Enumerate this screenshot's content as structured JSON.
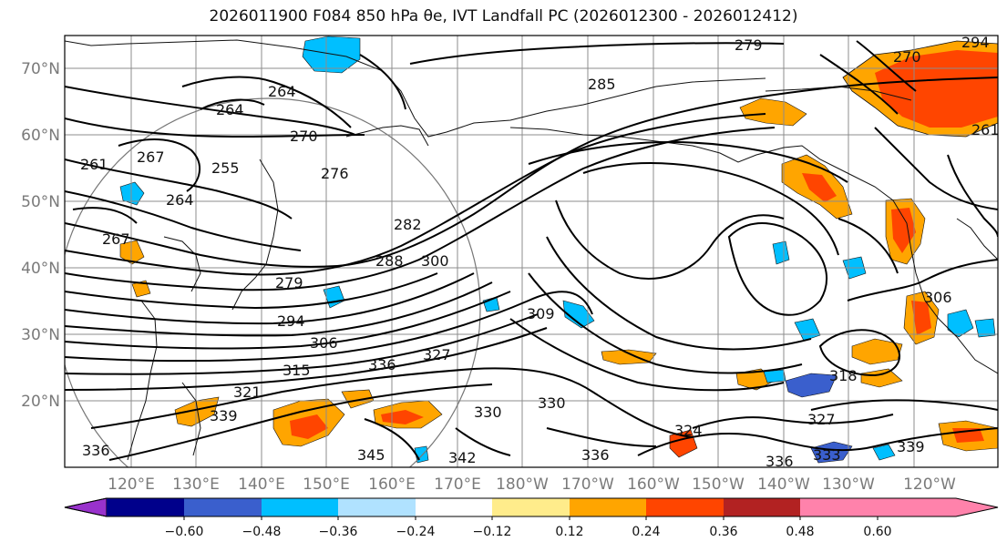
{
  "title": "2026011900 F084 850 hPa θe, IVT Landfall PC (2026012300 - 2026012412)",
  "lat_labels": [
    "70°N",
    "60°N",
    "50°N",
    "40°N",
    "30°N",
    "20°N"
  ],
  "lon_labels": [
    "120°E",
    "130°E",
    "140°E",
    "150°E",
    "160°E",
    "170°E",
    "180°W",
    "170°W",
    "160°W",
    "150°W",
    "140°W",
    "130°W",
    "120°W"
  ],
  "colorbar": {
    "colors": [
      "#9932cc",
      "#00008b",
      "#3a5fcd",
      "#00bfff",
      "#b0e2ff",
      "#ffffff",
      "#ffec8b",
      "#ffa500",
      "#ff4500",
      "#b22222",
      "#ff82ab"
    ],
    "tick_labels": [
      "−0.60",
      "−0.48",
      "−0.36",
      "−0.24",
      "−0.12",
      "0.12",
      "0.24",
      "0.36",
      "0.48",
      "0.60"
    ]
  },
  "contour_labels": [
    "279",
    "264",
    "264",
    "270",
    "276",
    "261",
    "267",
    "255",
    "264",
    "267",
    "282",
    "288",
    "300",
    "279",
    "294",
    "306",
    "315",
    "321",
    "327",
    "336",
    "309",
    "330",
    "330",
    "339",
    "345",
    "342",
    "336",
    "324",
    "318",
    "327",
    "333",
    "336",
    "339",
    "306",
    "285",
    "261",
    "270",
    "294",
    "336"
  ]
}
